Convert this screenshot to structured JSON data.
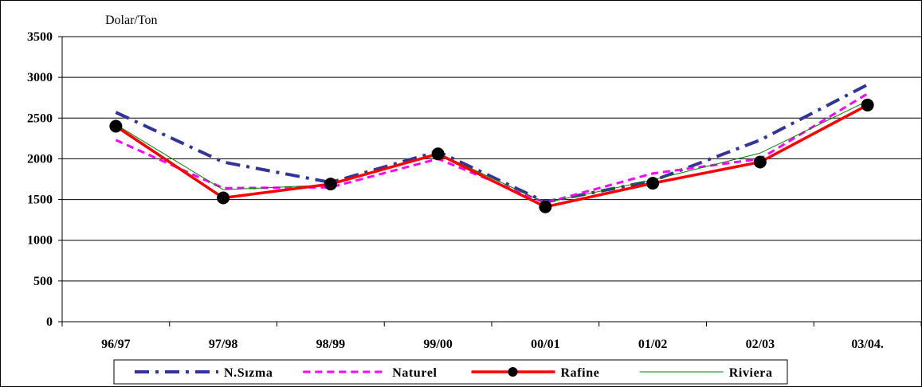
{
  "chart_data": {
    "type": "line",
    "unit_label": "Dolar/Ton",
    "categories": [
      "96/97",
      "97/98",
      "98/99",
      "99/00",
      "00/01",
      "01/02",
      "02/03",
      "03/04."
    ],
    "ylim": [
      0,
      3500
    ],
    "yticks": [
      0,
      500,
      1000,
      1500,
      2000,
      2500,
      3000,
      3500
    ],
    "ytick_labels": [
      "0",
      "500",
      "1000",
      "1500",
      "2000",
      "2500",
      "3000",
      "3500"
    ],
    "grid": true,
    "legend_position": "bottom",
    "series": [
      {
        "name": "N.Sızma",
        "values": [
          2570,
          1960,
          1710,
          2090,
          1470,
          1730,
          2230,
          2910
        ],
        "color": "#333399",
        "style": "dash-dot"
      },
      {
        "name": "Naturel",
        "values": [
          2230,
          1640,
          1650,
          2000,
          1460,
          1820,
          2000,
          2800
        ],
        "color": "#ff00ff",
        "style": "dashed"
      },
      {
        "name": "Rafine",
        "values": [
          2400,
          1520,
          1690,
          2060,
          1410,
          1700,
          1960,
          2660
        ],
        "color": "#ff0000",
        "style": "solid-marker"
      },
      {
        "name": "Riviera",
        "values": [
          2420,
          1620,
          1680,
          2070,
          1460,
          1740,
          2070,
          2710
        ],
        "color": "#008000",
        "style": "thin"
      }
    ]
  }
}
